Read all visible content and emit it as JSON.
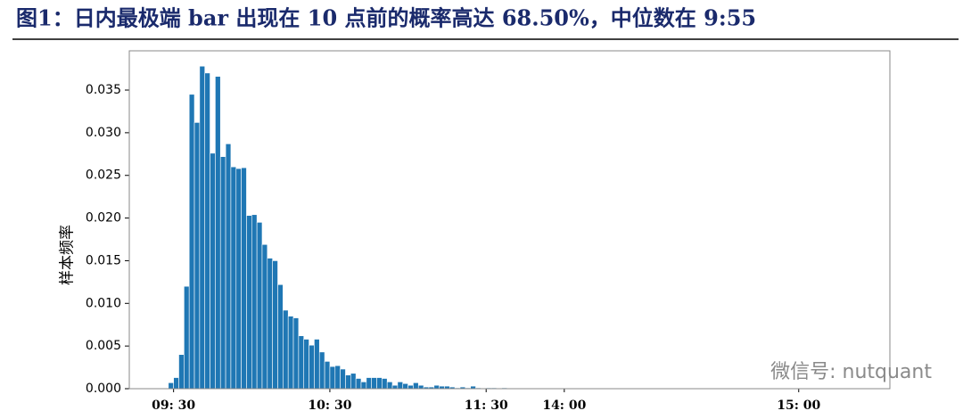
{
  "chart_data": {
    "type": "histogram",
    "title": "图1：日内最极端 bar 出现在 10 点前的概率高达 68.50%，中位数在 9:55",
    "ylabel": "样本频率",
    "watermark": "微信号: nutquant",
    "color": "#1f77b4",
    "bins": [
      -2,
      0,
      2,
      4,
      6,
      8,
      10,
      12,
      14,
      16,
      18,
      20,
      22,
      24,
      26,
      28,
      30,
      32,
      34,
      36,
      38,
      40,
      42,
      44,
      46,
      48,
      50,
      52,
      54,
      56,
      58,
      60,
      62,
      64,
      66,
      68,
      70,
      72,
      74,
      76,
      78,
      80,
      82,
      84,
      86,
      88,
      90,
      92,
      94,
      96,
      98,
      100,
      102,
      104,
      106,
      108,
      110,
      112,
      114,
      116,
      118,
      120,
      122,
      124,
      126,
      128
    ],
    "counts": [
      0.0007,
      0.0013,
      0.004,
      0.012,
      0.0345,
      0.0312,
      0.0378,
      0.037,
      0.0276,
      0.0366,
      0.0272,
      0.0287,
      0.026,
      0.0258,
      0.0259,
      0.0203,
      0.0204,
      0.0195,
      0.0169,
      0.0153,
      0.015,
      0.0122,
      0.0092,
      0.0085,
      0.0083,
      0.0062,
      0.0058,
      0.0051,
      0.0058,
      0.0043,
      0.0032,
      0.0026,
      0.0027,
      0.0023,
      0.0016,
      0.0018,
      0.0012,
      0.0008,
      0.0013,
      0.0013,
      0.0013,
      0.0012,
      0.0008,
      0.0004,
      0.0008,
      0.0006,
      0.0004,
      0.0007,
      0.0004,
      0.0002,
      0.0002,
      0.0004,
      0.0003,
      0.0003,
      0.0002,
      0.0001,
      0.0002,
      0.0001,
      0.0003,
      0.0001,
      0,
      0.0001,
      0.0001,
      0,
      0.0001
    ],
    "xlim": [
      -17,
      275
    ],
    "xticks": [
      {
        "value": 0,
        "label": "09: 30"
      },
      {
        "value": 60,
        "label": "10: 30"
      },
      {
        "value": 120,
        "label": "11: 30"
      },
      {
        "value": 150,
        "label": "14: 00"
      },
      {
        "value": 240,
        "label": "15: 00"
      }
    ],
    "ylim": [
      0,
      0.0396
    ],
    "yticks": [
      {
        "value": 0,
        "label": "0.000"
      },
      {
        "value": 0.005,
        "label": "0.005"
      },
      {
        "value": 0.01,
        "label": "0.010"
      },
      {
        "value": 0.015,
        "label": "0.015"
      },
      {
        "value": 0.02,
        "label": "0.020"
      },
      {
        "value": 0.025,
        "label": "0.025"
      },
      {
        "value": 0.03,
        "label": "0.030"
      },
      {
        "value": 0.035,
        "label": "0.035"
      }
    ]
  }
}
